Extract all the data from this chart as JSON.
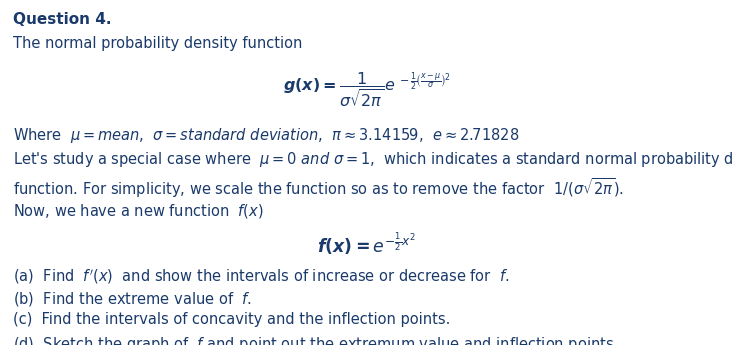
{
  "text_color": "#1a3a6b",
  "bg_color": "#ffffff",
  "fig_width": 7.33,
  "fig_height": 3.45,
  "dpi": 100,
  "font_size": 10.5
}
